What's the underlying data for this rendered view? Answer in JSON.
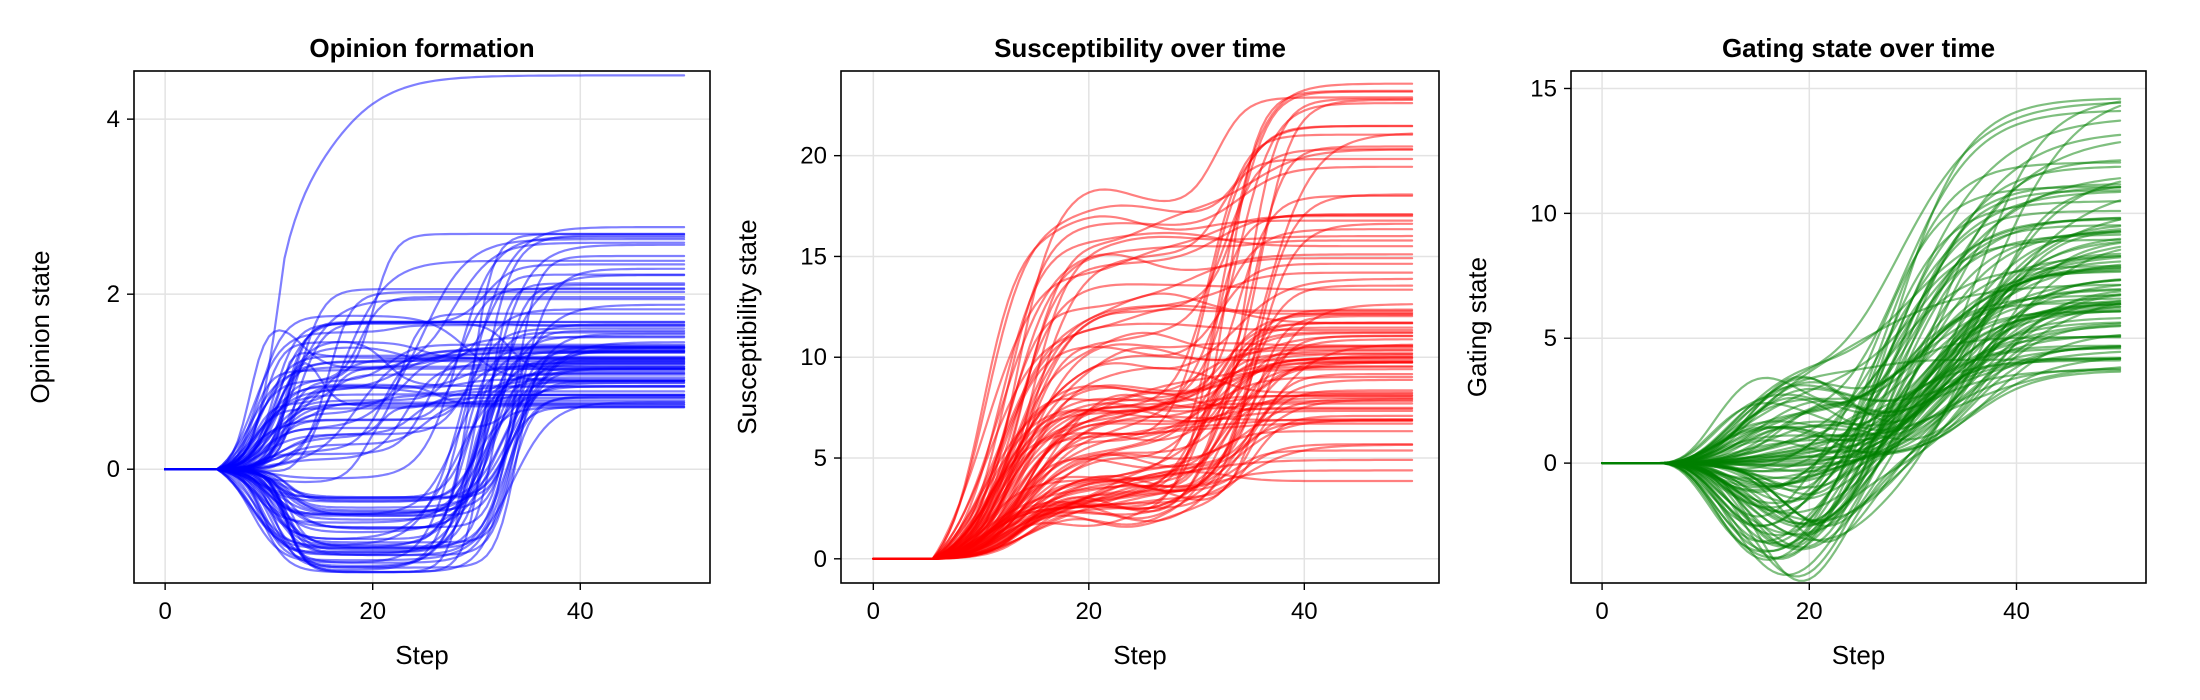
{
  "chart_data": [
    {
      "type": "line",
      "title": "Opinion formation",
      "xlabel": "Step",
      "ylabel": "Opinion state",
      "xlim": [
        -3,
        52.5
      ],
      "ylim": [
        -1.3,
        4.55
      ],
      "xticks": [
        0,
        20,
        40
      ],
      "yticks": [
        0,
        2,
        4
      ],
      "grid": true,
      "line_color": "#0000ff",
      "line_opacity": 0.5,
      "n_trajectories": 100,
      "x": [
        0,
        50
      ],
      "onset_step": 5,
      "early_branch_step_range": [
        8,
        12
      ],
      "early_branch_value_range": [
        -1.2,
        1.8
      ],
      "late_switch_step_range": [
        28,
        34
      ],
      "final_values_range": [
        0.7,
        2.9
      ],
      "outlier_final_value": 4.5,
      "representative_final_values": [
        4.5,
        2.88,
        2.65,
        2.5,
        2.35,
        2.2,
        2.05,
        1.9,
        1.8,
        1.7,
        1.6,
        1.5,
        1.4,
        1.3,
        1.2,
        1.1,
        1.0,
        0.9,
        0.8,
        0.72
      ]
    },
    {
      "type": "line",
      "title": "Susceptibility over time",
      "xlabel": "Step",
      "ylabel": "Susceptibility state",
      "xlim": [
        -3,
        52.5
      ],
      "ylim": [
        -1.2,
        24.2
      ],
      "xticks": [
        0,
        20,
        40
      ],
      "yticks": [
        0,
        5,
        10,
        15,
        20
      ],
      "grid": true,
      "line_color": "#ff0000",
      "line_opacity": 0.5,
      "n_trajectories": 100,
      "x": [
        0,
        50
      ],
      "onset_step": 5.5,
      "mid_plateau_step": 20,
      "mid_plateau_range": [
        2.5,
        17.8
      ],
      "late_rise_step_range": [
        30,
        36
      ],
      "final_values_range": [
        3.8,
        24.2
      ],
      "representative_final_values": [
        24.2,
        23.8,
        22.6,
        20.7,
        19.8,
        19.5,
        18.9,
        17.5,
        17.0,
        16.0,
        14.5,
        12.5,
        12.0,
        11.5,
        11.0,
        10.5,
        10.0,
        9.5,
        9.0,
        8.5,
        8.0,
        7.5,
        7.0,
        6.5,
        6.0,
        5.5,
        5.0,
        4.5,
        4.0,
        3.8
      ]
    },
    {
      "type": "line",
      "title": "Gating state over time",
      "xlabel": "Step",
      "ylabel": "Gating state",
      "xlim": [
        -3,
        52.5
      ],
      "ylim": [
        -4.8,
        15.7
      ],
      "xticks": [
        0,
        20,
        40
      ],
      "yticks": [
        0,
        5,
        10,
        15
      ],
      "grid": true,
      "line_color": "#008000",
      "line_opacity": 0.5,
      "n_trajectories": 100,
      "x": [
        0,
        50
      ],
      "onset_step": 5.5,
      "dip_step_range": [
        15,
        22
      ],
      "dip_value_range": [
        -4.8,
        3.5
      ],
      "final_values_range": [
        3.3,
        15.6
      ],
      "representative_final_values": [
        15.6,
        15.1,
        14.2,
        12.0,
        11.5,
        11.0,
        10.0,
        9.5,
        9.0,
        8.5,
        8.0,
        7.8,
        7.5,
        7.2,
        7.0,
        6.8,
        6.5,
        6.2,
        6.0,
        5.8,
        5.5,
        5.0,
        4.7,
        4.2,
        3.8,
        3.3
      ]
    }
  ]
}
